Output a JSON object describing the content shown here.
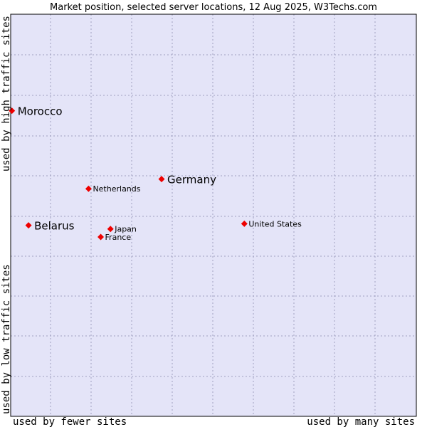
{
  "chart_data": {
    "type": "scatter",
    "title": "Market position, selected server locations, 12 Aug 2025, W3Techs.com",
    "xlabel_left": "used by fewer sites",
    "xlabel_right": "used by many sites",
    "ylabel_bottom": "used by low traffic sites",
    "ylabel_top": "used by high traffic sites",
    "xlim": [
      0,
      100
    ],
    "ylim": [
      0,
      100
    ],
    "grid": true,
    "colors": {
      "plot_background": "#e4e4f8",
      "grid": "#a0a0c0",
      "point": "#ee0000",
      "frame": "#000000"
    },
    "points": [
      {
        "name": "Morocco",
        "x": 0.3,
        "y": 76.0,
        "emphasis": true
      },
      {
        "name": "Germany",
        "x": 37.2,
        "y": 59.0,
        "emphasis": true
      },
      {
        "name": "Netherlands",
        "x": 19.2,
        "y": 56.6,
        "emphasis": false
      },
      {
        "name": "Belarus",
        "x": 4.4,
        "y": 47.5,
        "emphasis": true
      },
      {
        "name": "Japan",
        "x": 24.6,
        "y": 46.6,
        "emphasis": false
      },
      {
        "name": "France",
        "x": 22.2,
        "y": 44.6,
        "emphasis": false
      },
      {
        "name": "United States",
        "x": 57.6,
        "y": 47.9,
        "emphasis": false
      }
    ]
  }
}
